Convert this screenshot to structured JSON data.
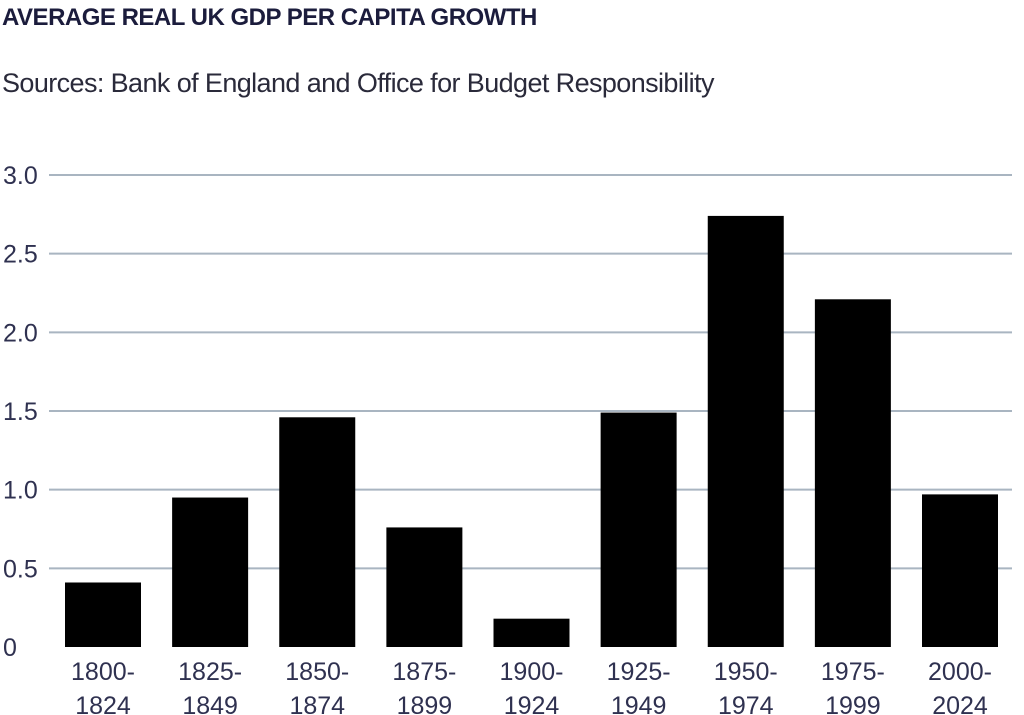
{
  "colors": {
    "title": "#1b1c3c",
    "axis_text": "#2f3150",
    "grid": "#a9b5c1",
    "bar": "#000000"
  },
  "chart_data": {
    "type": "bar",
    "title": "AVERAGE REAL UK GDP PER CAPITA GROWTH",
    "subtitle": "Sources: Bank of England and Office for Budget Responsibility",
    "xlabel": "",
    "ylabel": "",
    "categories": [
      "1800-1824",
      "1825-1849",
      "1850-1874",
      "1875-1899",
      "1900-1924",
      "1925-1949",
      "1950-1974",
      "1975-1999",
      "2000-2024"
    ],
    "category_lines": [
      [
        "1800-",
        "1824"
      ],
      [
        "1825-",
        "1849"
      ],
      [
        "1850-",
        "1874"
      ],
      [
        "1875-",
        "1899"
      ],
      [
        "1900-",
        "1924"
      ],
      [
        "1925-",
        "1949"
      ],
      [
        "1950-",
        "1974"
      ],
      [
        "1975-",
        "1999"
      ],
      [
        "2000-",
        "2024"
      ]
    ],
    "values": [
      0.41,
      0.95,
      1.46,
      0.76,
      0.18,
      1.49,
      2.74,
      2.21,
      0.97
    ],
    "ylim": [
      0,
      3.0
    ],
    "yticks": [
      0,
      0.5,
      1.0,
      1.5,
      2.0,
      2.5,
      3.0
    ],
    "ytick_labels": [
      "0",
      "0.5",
      "1.0",
      "1.5",
      "2.0",
      "2.5",
      "3.0"
    ],
    "grid": true,
    "legend": "none"
  }
}
